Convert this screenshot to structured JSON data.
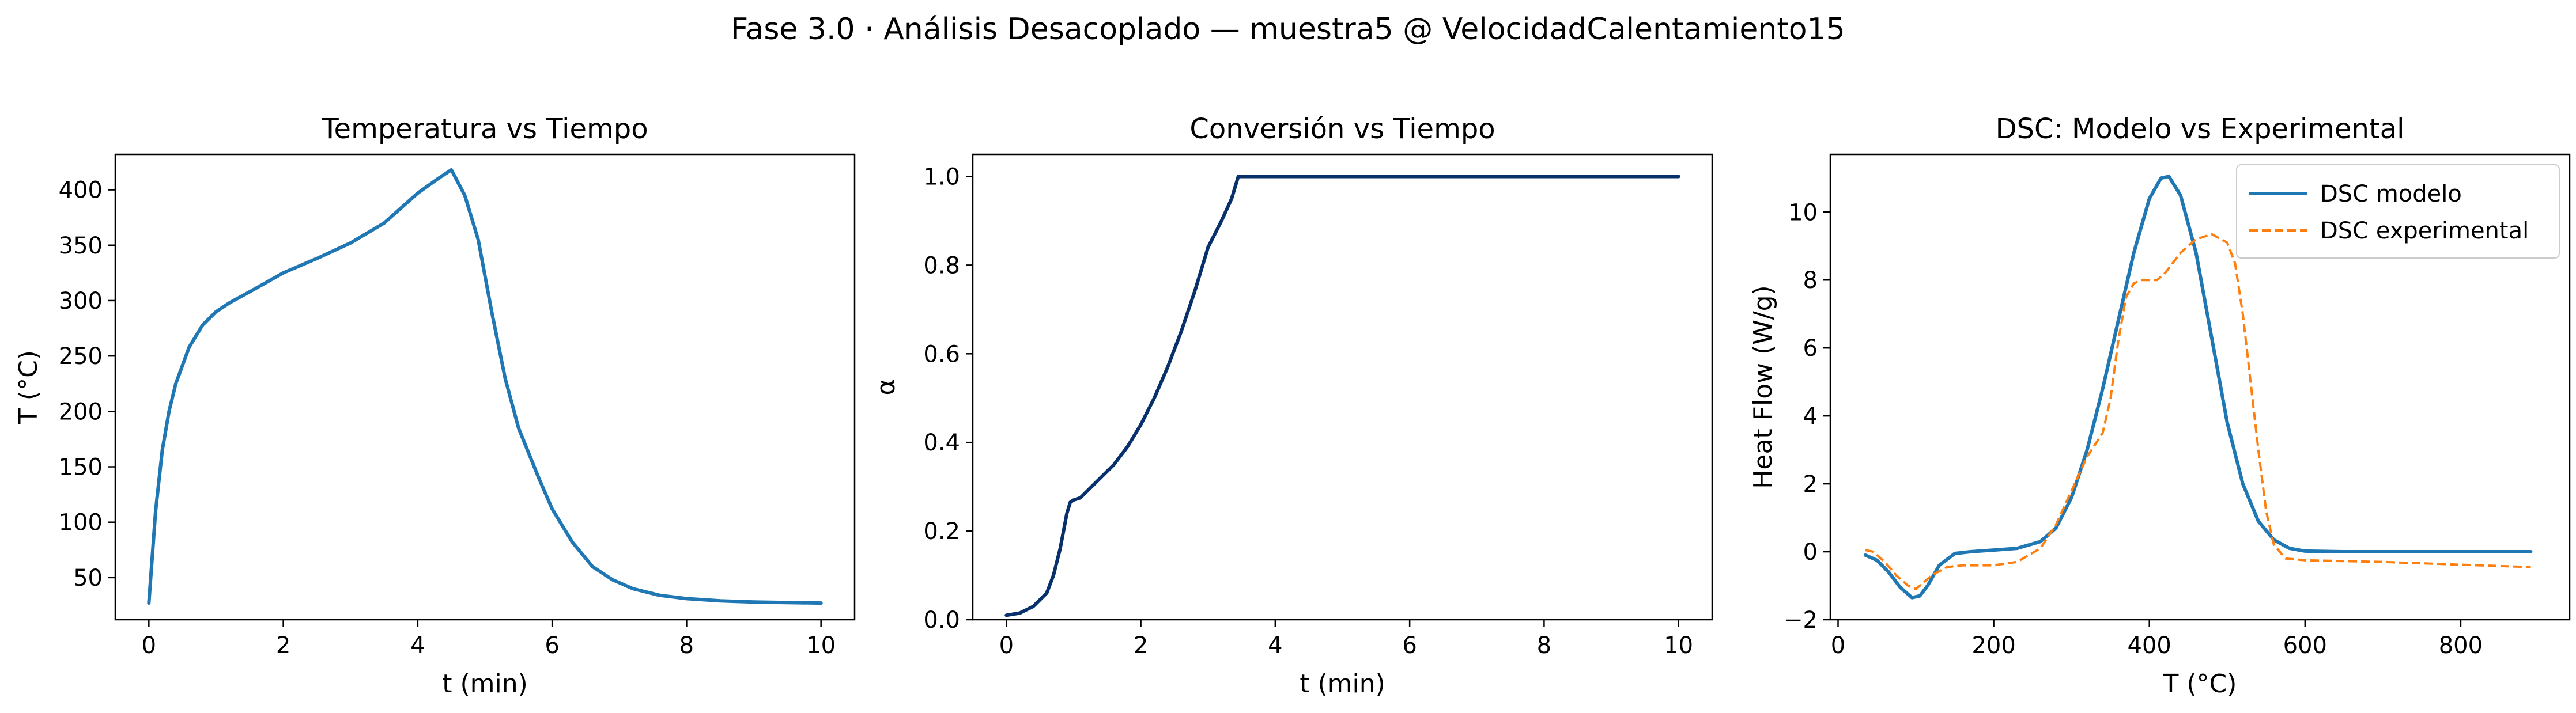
{
  "figure": {
    "suptitle": "Fase 3.0 · Análisis Desacoplado — muestra5 @ VelocidadCalentamiento15"
  },
  "chart_data": [
    {
      "type": "line",
      "title": "Temperatura vs Tiempo",
      "xlabel": "t (min)",
      "ylabel": "T (°C)",
      "xlim": [
        -0.5,
        10.5
      ],
      "ylim": [
        12,
        432
      ],
      "xticks": [
        0,
        2,
        4,
        6,
        8,
        10
      ],
      "xtick_labels": [
        "0",
        "2",
        "4",
        "6",
        "8",
        "10"
      ],
      "yticks": [
        50,
        100,
        150,
        200,
        250,
        300,
        350,
        400
      ],
      "ytick_labels": [
        "50",
        "100",
        "150",
        "200",
        "250",
        "300",
        "350",
        "400"
      ],
      "grid": false,
      "series": [
        {
          "color": "#1f77b4",
          "style": "solid",
          "x": [
            0,
            0.1,
            0.2,
            0.3,
            0.4,
            0.6,
            0.8,
            1.0,
            1.2,
            1.5,
            2.0,
            2.5,
            3.0,
            3.5,
            4.0,
            4.3,
            4.5,
            4.7,
            4.9,
            5.1,
            5.3,
            5.5,
            5.8,
            6.0,
            6.3,
            6.6,
            6.9,
            7.2,
            7.6,
            8.0,
            8.5,
            9.0,
            9.5,
            10.0
          ],
          "y": [
            27,
            110,
            165,
            200,
            225,
            258,
            278,
            290,
            298,
            308,
            325,
            338,
            352,
            370,
            397,
            410,
            418,
            395,
            355,
            290,
            230,
            185,
            140,
            112,
            82,
            60,
            48,
            40,
            34,
            31,
            29,
            28,
            27.5,
            27
          ]
        }
      ]
    },
    {
      "type": "line",
      "title": "Conversión vs Tiempo",
      "xlabel": "t (min)",
      "ylabel": "α",
      "xlim": [
        -0.5,
        10.5
      ],
      "ylim": [
        0,
        1.05
      ],
      "xticks": [
        0,
        2,
        4,
        6,
        8,
        10
      ],
      "xtick_labels": [
        "0",
        "2",
        "4",
        "6",
        "8",
        "10"
      ],
      "yticks": [
        0.0,
        0.2,
        0.4,
        0.6,
        0.8,
        1.0
      ],
      "ytick_labels": [
        "0.0",
        "0.2",
        "0.4",
        "0.6",
        "0.8",
        "1.0"
      ],
      "grid": false,
      "series": [
        {
          "color": "#08306b",
          "style": "solid",
          "x": [
            0,
            0.2,
            0.4,
            0.6,
            0.7,
            0.8,
            0.9,
            0.95,
            1.0,
            1.1,
            1.2,
            1.4,
            1.6,
            1.8,
            2.0,
            2.2,
            2.4,
            2.6,
            2.8,
            2.9,
            3.0,
            3.2,
            3.35,
            3.45,
            4,
            6,
            8,
            10
          ],
          "y": [
            0.01,
            0.015,
            0.03,
            0.06,
            0.1,
            0.16,
            0.24,
            0.265,
            0.27,
            0.275,
            0.29,
            0.32,
            0.35,
            0.39,
            0.44,
            0.5,
            0.57,
            0.65,
            0.74,
            0.79,
            0.84,
            0.9,
            0.95,
            1.0,
            1.0,
            1.0,
            1.0,
            1.0
          ]
        }
      ]
    },
    {
      "type": "line",
      "title": "DSC: Modelo vs Experimental",
      "xlabel": "T (°C)",
      "ylabel": "Heat Flow (W/g)",
      "xlim": [
        -10,
        940
      ],
      "ylim": [
        -2,
        11.7
      ],
      "xticks": [
        0,
        200,
        400,
        600,
        800
      ],
      "xtick_labels": [
        "0",
        "200",
        "400",
        "600",
        "800"
      ],
      "yticks": [
        -2,
        0,
        2,
        4,
        6,
        8,
        10
      ],
      "ytick_labels": [
        "−2",
        "0",
        "2",
        "4",
        "6",
        "8",
        "10"
      ],
      "grid": false,
      "legend": "top-right",
      "series": [
        {
          "name": "DSC modelo",
          "color": "#1f77b4",
          "style": "solid",
          "x": [
            35,
            50,
            65,
            80,
            95,
            105,
            115,
            130,
            150,
            170,
            200,
            230,
            260,
            280,
            300,
            320,
            340,
            360,
            380,
            400,
            415,
            425,
            440,
            460,
            480,
            500,
            520,
            540,
            560,
            580,
            600,
            650,
            700,
            800,
            890
          ],
          "y": [
            -0.1,
            -0.25,
            -0.6,
            -1.05,
            -1.35,
            -1.3,
            -1.0,
            -0.4,
            -0.05,
            0.0,
            0.05,
            0.1,
            0.3,
            0.7,
            1.6,
            3.0,
            4.8,
            6.8,
            8.8,
            10.4,
            11.0,
            11.05,
            10.5,
            8.8,
            6.3,
            3.8,
            2.0,
            0.9,
            0.35,
            0.1,
            0.02,
            0.0,
            0.0,
            0.0,
            0.0
          ]
        },
        {
          "name": "DSC experimental",
          "color": "#ff7f0e",
          "style": "dashed",
          "x": [
            35,
            45,
            60,
            75,
            90,
            100,
            120,
            140,
            160,
            200,
            230,
            260,
            280,
            300,
            320,
            340,
            350,
            360,
            370,
            380,
            390,
            410,
            420,
            440,
            460,
            480,
            500,
            510,
            520,
            530,
            540,
            550,
            560,
            575,
            600,
            700,
            800,
            890
          ],
          "y": [
            0.05,
            0.0,
            -0.3,
            -0.7,
            -1.0,
            -1.1,
            -0.7,
            -0.45,
            -0.4,
            -0.4,
            -0.3,
            0.1,
            0.8,
            1.8,
            2.8,
            3.5,
            4.5,
            6.2,
            7.5,
            7.9,
            8.0,
            8.0,
            8.2,
            8.8,
            9.2,
            9.35,
            9.1,
            8.5,
            7.0,
            5.0,
            3.0,
            1.2,
            0.2,
            -0.2,
            -0.25,
            -0.3,
            -0.38,
            -0.45
          ]
        }
      ]
    }
  ]
}
